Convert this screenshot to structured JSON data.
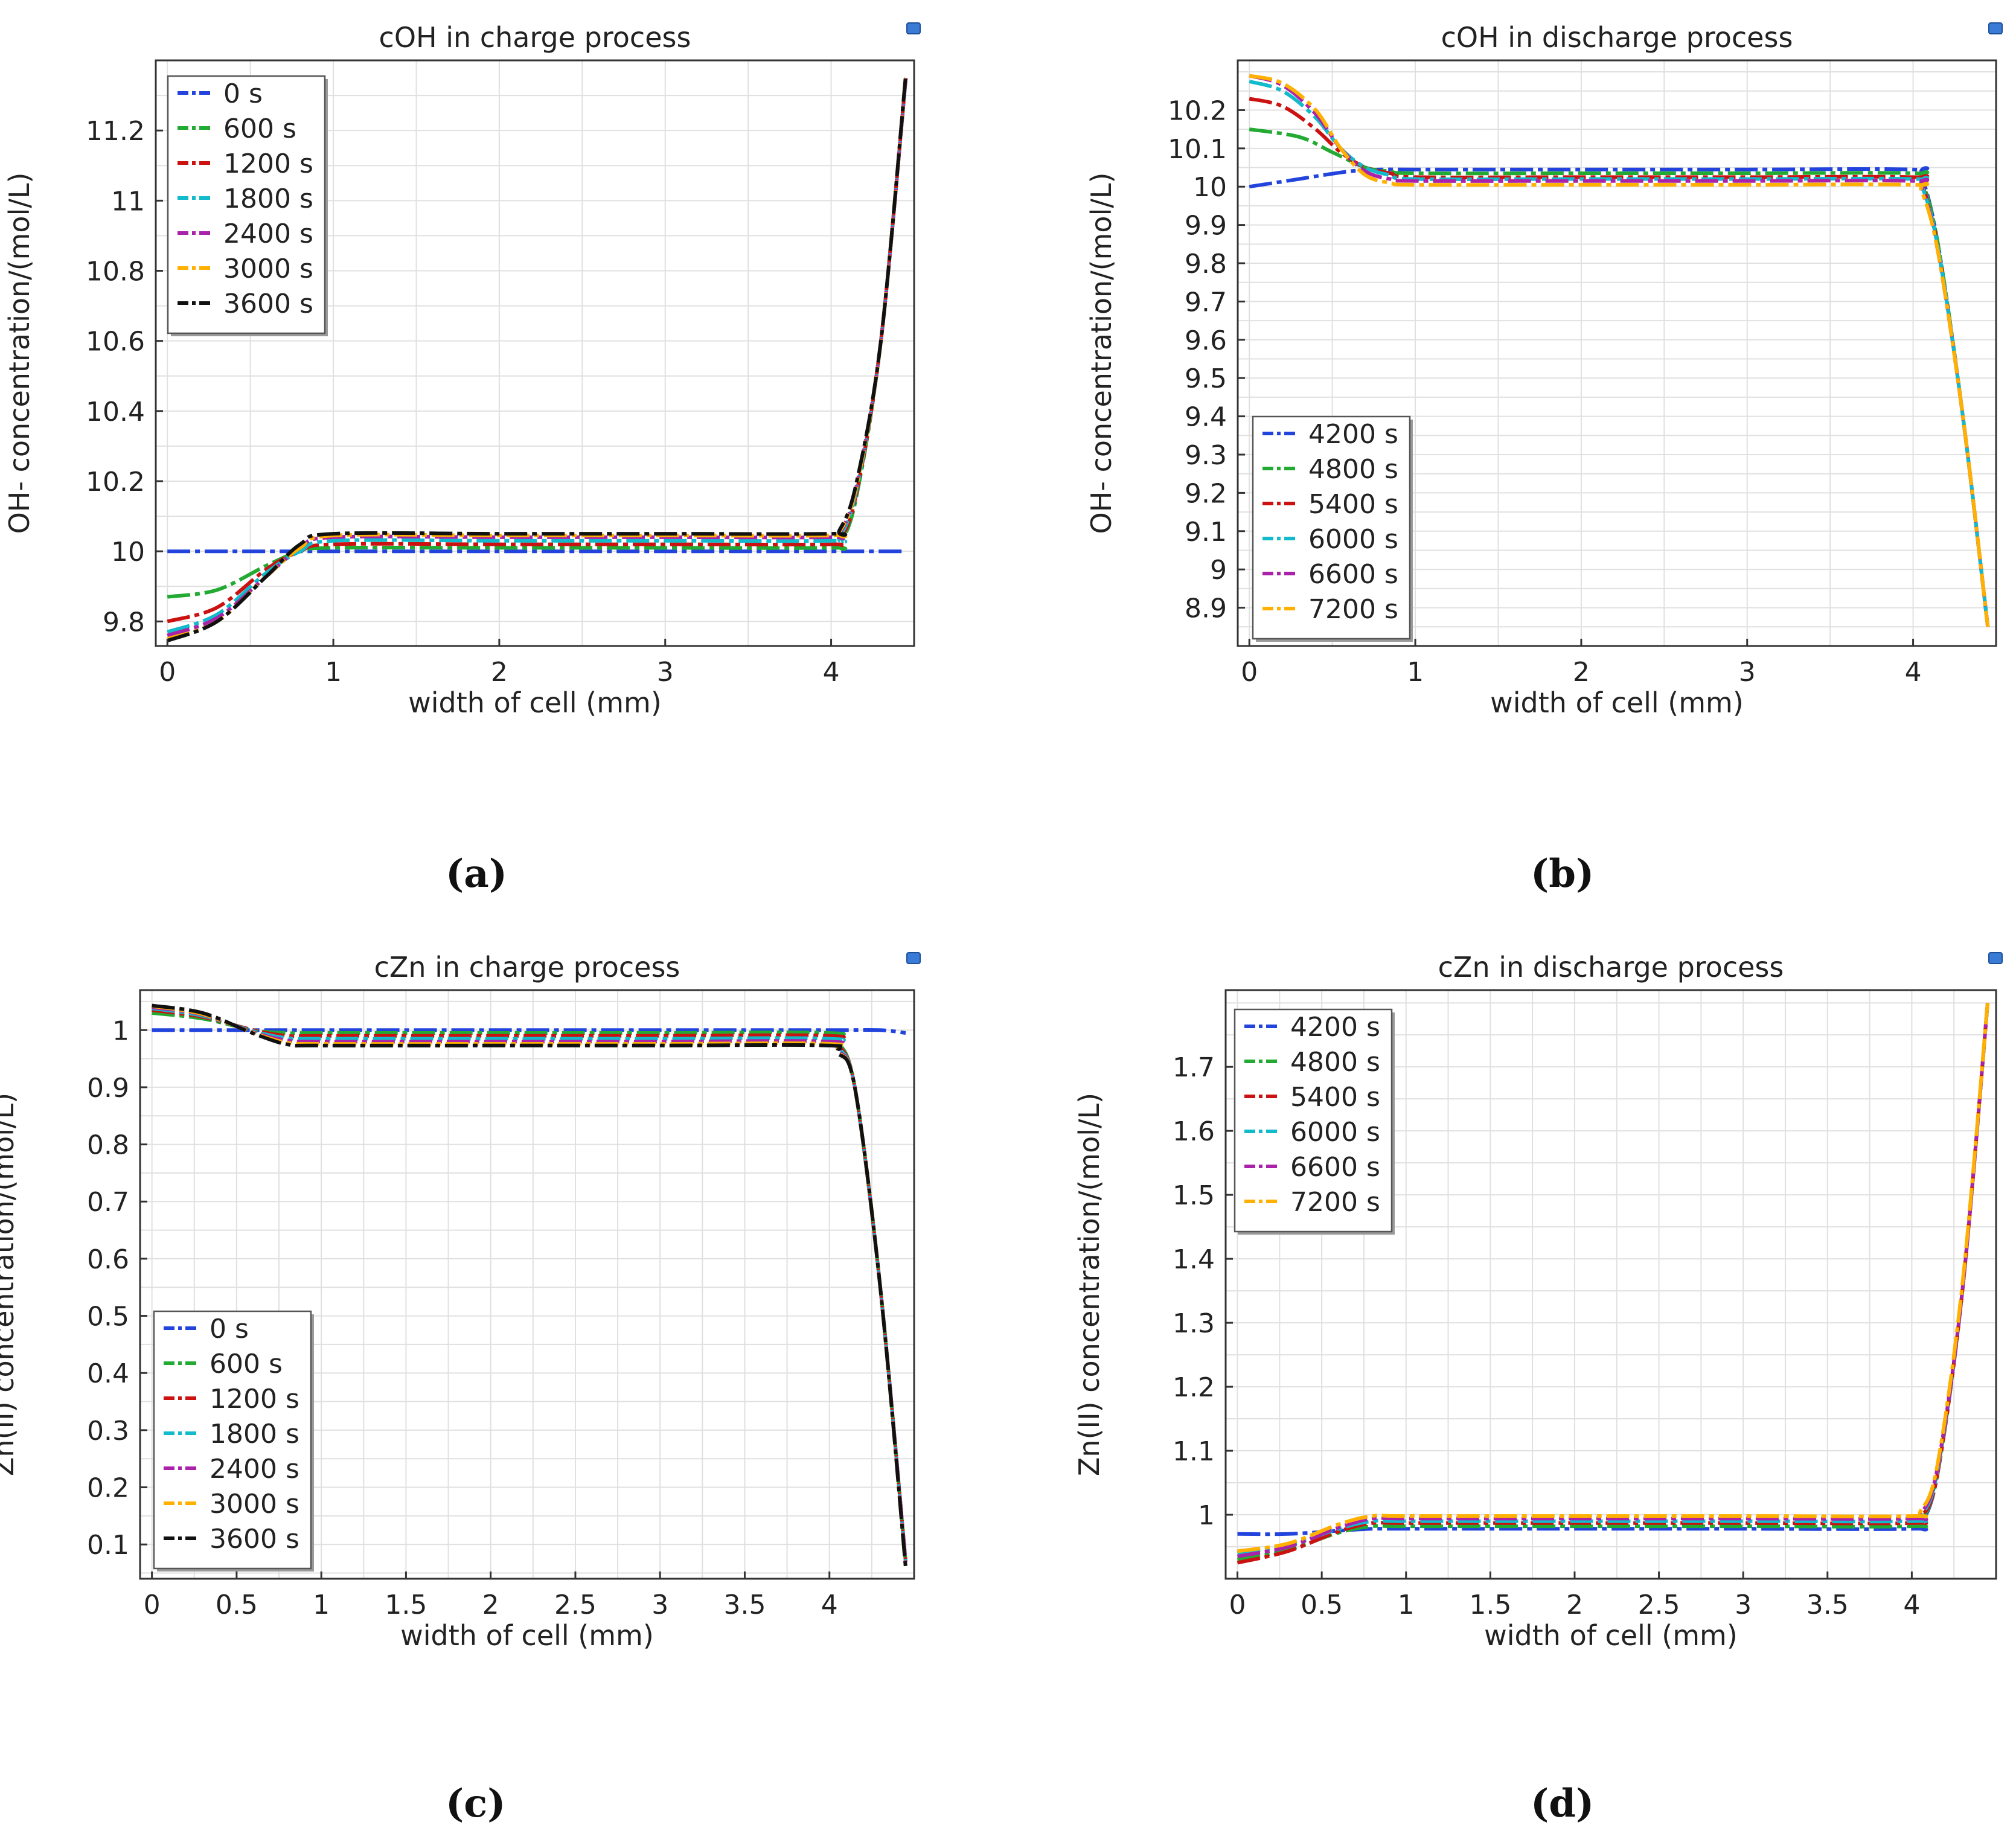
{
  "figure": {
    "panel_labels": [
      "(a)",
      "(b)",
      "(c)",
      "(d)"
    ]
  },
  "colors": {
    "s0": "#2244dd",
    "s1": "#22aa33",
    "s2": "#cc1111",
    "s3": "#11bbcc",
    "s4": "#aa22aa",
    "s5": "#ffb000",
    "s6": "#111111",
    "grid": "#e0e0e0",
    "axis": "#333333",
    "text": "#222222"
  },
  "chart_data": [
    {
      "id": "a",
      "type": "line",
      "title": "cOH in charge process",
      "xlabel": "width of cell (mm)",
      "ylabel": "OH- concentration/(mol/L)",
      "xlim": [
        -0.07,
        4.5
      ],
      "ylim": [
        9.73,
        11.4
      ],
      "xticks": [
        0,
        1,
        2,
        3,
        4
      ],
      "yticks": [
        9.8,
        10,
        10.2,
        10.4,
        10.6,
        10.8,
        11,
        11.2
      ],
      "legend_position": "top-left",
      "legend": [
        "0 s",
        "600 s",
        "1200 s",
        "1800 s",
        "2400 s",
        "3000 s",
        "3600 s"
      ],
      "series": [
        {
          "name": "0 s",
          "color_key": "s0",
          "x": [
            0,
            1,
            2,
            3,
            4,
            4.45
          ],
          "y": [
            10.0,
            10.0,
            10.0,
            10.0,
            10.0,
            10.0
          ]
        },
        {
          "name": "600 s",
          "color_key": "s1",
          "x": [
            0,
            0.3,
            0.6,
            0.8,
            1,
            2,
            3,
            4,
            4.05,
            4.15,
            4.3,
            4.45
          ],
          "y": [
            9.87,
            9.89,
            9.96,
            10.0,
            10.01,
            10.01,
            10.01,
            10.01,
            10.02,
            10.15,
            10.6,
            11.35
          ]
        },
        {
          "name": "1200 s",
          "color_key": "s2",
          "x": [
            0,
            0.3,
            0.6,
            0.8,
            1,
            2,
            3,
            4,
            4.05,
            4.15,
            4.3,
            4.45
          ],
          "y": [
            9.8,
            9.84,
            9.95,
            10.0,
            10.02,
            10.02,
            10.02,
            10.02,
            10.03,
            10.16,
            10.6,
            11.35
          ]
        },
        {
          "name": "1800 s",
          "color_key": "s3",
          "x": [
            0,
            0.3,
            0.6,
            0.8,
            1,
            2,
            3,
            4,
            4.05,
            4.15,
            4.3,
            4.45
          ],
          "y": [
            9.77,
            9.82,
            9.94,
            10.0,
            10.03,
            10.03,
            10.03,
            10.03,
            10.04,
            10.17,
            10.6,
            11.35
          ]
        },
        {
          "name": "2400 s",
          "color_key": "s4",
          "x": [
            0,
            0.3,
            0.6,
            0.8,
            1,
            2,
            3,
            4,
            4.05,
            4.15,
            4.3,
            4.45
          ],
          "y": [
            9.76,
            9.81,
            9.93,
            10.01,
            10.04,
            10.04,
            10.04,
            10.04,
            10.05,
            10.18,
            10.6,
            11.35
          ]
        },
        {
          "name": "3000 s",
          "color_key": "s5",
          "x": [
            0,
            0.3,
            0.6,
            0.8,
            1,
            2,
            3,
            4,
            4.05,
            4.15,
            4.3,
            4.45
          ],
          "y": [
            9.75,
            9.8,
            9.93,
            10.01,
            10.045,
            10.045,
            10.045,
            10.045,
            10.055,
            10.18,
            10.6,
            11.36
          ]
        },
        {
          "name": "3600 s",
          "color_key": "s6",
          "x": [
            0,
            0.3,
            0.6,
            0.8,
            1,
            2,
            3,
            4,
            4.05,
            4.15,
            4.3,
            4.45
          ],
          "y": [
            9.745,
            9.8,
            9.93,
            10.02,
            10.05,
            10.05,
            10.05,
            10.05,
            10.06,
            10.19,
            10.6,
            11.36
          ]
        }
      ]
    },
    {
      "id": "b",
      "type": "line",
      "title": "cOH in discharge process",
      "xlabel": "width of cell (mm)",
      "ylabel": "OH- concentration/(mol/L)",
      "xlim": [
        -0.07,
        4.5
      ],
      "ylim": [
        8.8,
        10.33
      ],
      "xticks": [
        0,
        1,
        2,
        3,
        4
      ],
      "yticks": [
        8.9,
        9,
        9.1,
        9.2,
        9.3,
        9.4,
        9.5,
        9.6,
        9.7,
        9.8,
        9.9,
        10,
        10.1,
        10.2
      ],
      "legend_position": "bottom-left",
      "legend": [
        "4200 s",
        "4800 s",
        "5400 s",
        "6000 s",
        "6600 s",
        "7200 s"
      ],
      "series": [
        {
          "name": "4200 s",
          "color_key": "s0",
          "x": [
            0,
            0.3,
            0.6,
            0.8,
            1,
            2,
            3,
            4,
            4.05,
            4.15,
            4.3,
            4.45
          ],
          "y": [
            10.0,
            10.02,
            10.04,
            10.045,
            10.045,
            10.045,
            10.045,
            10.045,
            10.03,
            9.85,
            9.4,
            8.85
          ]
        },
        {
          "name": "4800 s",
          "color_key": "s1",
          "x": [
            0,
            0.3,
            0.5,
            0.7,
            0.85,
            1,
            2,
            3,
            4,
            4.05,
            4.15,
            4.3,
            4.45
          ],
          "y": [
            10.15,
            10.13,
            10.09,
            10.05,
            10.04,
            10.035,
            10.035,
            10.035,
            10.035,
            10.02,
            9.85,
            9.4,
            8.85
          ]
        },
        {
          "name": "5400 s",
          "color_key": "s2",
          "x": [
            0,
            0.2,
            0.4,
            0.55,
            0.7,
            0.85,
            1,
            2,
            3,
            4,
            4.05,
            4.15,
            4.3,
            4.45
          ],
          "y": [
            10.23,
            10.21,
            10.15,
            10.09,
            10.05,
            10.035,
            10.025,
            10.025,
            10.025,
            10.025,
            10.01,
            9.84,
            9.4,
            8.85
          ]
        },
        {
          "name": "6000 s",
          "color_key": "s3",
          "x": [
            0,
            0.2,
            0.4,
            0.55,
            0.7,
            0.85,
            1,
            2,
            3,
            4,
            4.05,
            4.15,
            4.3,
            4.45
          ],
          "y": [
            10.275,
            10.25,
            10.18,
            10.1,
            10.05,
            10.03,
            10.02,
            10.02,
            10.02,
            10.02,
            10.005,
            9.84,
            9.4,
            8.85
          ]
        },
        {
          "name": "6600 s",
          "color_key": "s4",
          "x": [
            0,
            0.2,
            0.4,
            0.55,
            0.7,
            0.85,
            1,
            2,
            3,
            4,
            4.05,
            4.15,
            4.3,
            4.45
          ],
          "y": [
            10.29,
            10.265,
            10.19,
            10.1,
            10.04,
            10.02,
            10.015,
            10.015,
            10.015,
            10.015,
            10.0,
            9.83,
            9.4,
            8.85
          ]
        },
        {
          "name": "7200 s",
          "color_key": "s5",
          "x": [
            0,
            0.2,
            0.4,
            0.55,
            0.7,
            0.85,
            1,
            2,
            3,
            4,
            4.05,
            4.15,
            4.3,
            4.45
          ],
          "y": [
            10.29,
            10.27,
            10.2,
            10.1,
            10.03,
            10.01,
            10.005,
            10.005,
            10.005,
            10.005,
            9.99,
            9.83,
            9.4,
            8.85
          ]
        }
      ]
    },
    {
      "id": "c",
      "type": "line",
      "title": "cZn in charge process",
      "xlabel": "width of cell (mm)",
      "ylabel": "Zn(II) concentration/(mol/L)",
      "xlim": [
        -0.07,
        4.5
      ],
      "ylim": [
        0.04,
        1.07
      ],
      "xticks": [
        0,
        0.5,
        1,
        1.5,
        2,
        2.5,
        3,
        3.5,
        4
      ],
      "yticks": [
        0.1,
        0.2,
        0.3,
        0.4,
        0.5,
        0.6,
        0.7,
        0.8,
        0.9,
        1
      ],
      "legend_position": "bottom-left",
      "legend": [
        "0 s",
        "600 s",
        "1200 s",
        "1800 s",
        "2400 s",
        "3000 s",
        "3600 s"
      ],
      "series": [
        {
          "name": "0 s",
          "color_key": "s0",
          "x": [
            0,
            1,
            2,
            3,
            4,
            4.3,
            4.45
          ],
          "y": [
            1.0,
            1.0,
            1.0,
            1.0,
            1.0,
            1.0,
            0.995
          ]
        },
        {
          "name": "600 s",
          "color_key": "s1",
          "x": [
            0,
            0.3,
            0.6,
            0.8,
            1,
            2,
            3,
            4,
            4.05,
            4.15,
            4.3,
            4.45
          ],
          "y": [
            1.03,
            1.02,
            1.0,
            0.995,
            0.995,
            0.995,
            0.995,
            0.995,
            0.98,
            0.9,
            0.55,
            0.07
          ]
        },
        {
          "name": "1200 s",
          "color_key": "s2",
          "x": [
            0,
            0.3,
            0.6,
            0.8,
            1,
            2,
            3,
            4,
            4.05,
            4.15,
            4.3,
            4.45
          ],
          "y": [
            1.035,
            1.023,
            1.0,
            0.99,
            0.99,
            0.99,
            0.99,
            0.99,
            0.975,
            0.9,
            0.55,
            0.07
          ]
        },
        {
          "name": "1800 s",
          "color_key": "s3",
          "x": [
            0,
            0.3,
            0.6,
            0.8,
            1,
            2,
            3,
            4,
            4.05,
            4.15,
            4.3,
            4.45
          ],
          "y": [
            1.038,
            1.025,
            0.998,
            0.986,
            0.985,
            0.985,
            0.985,
            0.985,
            0.97,
            0.9,
            0.55,
            0.07
          ]
        },
        {
          "name": "2400 s",
          "color_key": "s4",
          "x": [
            0,
            0.3,
            0.6,
            0.8,
            1,
            2,
            3,
            4,
            4.05,
            4.15,
            4.3,
            4.45
          ],
          "y": [
            1.04,
            1.027,
            0.996,
            0.982,
            0.98,
            0.98,
            0.98,
            0.98,
            0.965,
            0.9,
            0.55,
            0.07
          ]
        },
        {
          "name": "3000 s",
          "color_key": "s5",
          "x": [
            0,
            0.3,
            0.6,
            0.8,
            1,
            2,
            3,
            4,
            4.05,
            4.15,
            4.3,
            4.45
          ],
          "y": [
            1.042,
            1.028,
            0.995,
            0.978,
            0.976,
            0.976,
            0.976,
            0.976,
            0.962,
            0.9,
            0.55,
            0.06
          ]
        },
        {
          "name": "3600 s",
          "color_key": "s6",
          "x": [
            0,
            0.3,
            0.6,
            0.8,
            1,
            2,
            3,
            4,
            4.05,
            4.15,
            4.3,
            4.45
          ],
          "y": [
            1.043,
            1.03,
            0.994,
            0.975,
            0.973,
            0.973,
            0.973,
            0.973,
            0.96,
            0.9,
            0.55,
            0.06
          ]
        }
      ]
    },
    {
      "id": "d",
      "type": "line",
      "title": "cZn in discharge process",
      "xlabel": "width of cell (mm)",
      "ylabel": "Zn(II) concentration/(mol/L)",
      "xlim": [
        -0.07,
        4.5
      ],
      "ylim": [
        0.9,
        1.82
      ],
      "xticks": [
        0,
        0.5,
        1,
        1.5,
        2,
        2.5,
        3,
        3.5,
        4
      ],
      "yticks": [
        1,
        1.1,
        1.2,
        1.3,
        1.4,
        1.5,
        1.6,
        1.7
      ],
      "legend_position": "top-left",
      "legend": [
        "4200 s",
        "4800 s",
        "5400 s",
        "6000 s",
        "6600 s",
        "7200 s"
      ],
      "series": [
        {
          "name": "4200 s",
          "color_key": "s0",
          "x": [
            0,
            0.3,
            0.6,
            0.8,
            1,
            2,
            3,
            4,
            4.05,
            4.15,
            4.3,
            4.45
          ],
          "y": [
            0.97,
            0.97,
            0.975,
            0.978,
            0.978,
            0.978,
            0.978,
            0.978,
            0.985,
            1.06,
            1.35,
            1.8
          ]
        },
        {
          "name": "4800 s",
          "color_key": "s1",
          "x": [
            0,
            0.3,
            0.6,
            0.8,
            1,
            2,
            3,
            4,
            4.05,
            4.15,
            4.3,
            4.45
          ],
          "y": [
            0.93,
            0.945,
            0.972,
            0.982,
            0.982,
            0.982,
            0.982,
            0.982,
            0.99,
            1.06,
            1.35,
            1.8
          ]
        },
        {
          "name": "5400 s",
          "color_key": "s2",
          "x": [
            0,
            0.3,
            0.6,
            0.8,
            1,
            2,
            3,
            4,
            4.05,
            4.15,
            4.3,
            4.45
          ],
          "y": [
            0.925,
            0.943,
            0.974,
            0.987,
            0.987,
            0.987,
            0.987,
            0.987,
            0.995,
            1.06,
            1.35,
            1.8
          ]
        },
        {
          "name": "6000 s",
          "color_key": "s3",
          "x": [
            0,
            0.3,
            0.6,
            0.8,
            1,
            2,
            3,
            4,
            4.05,
            4.15,
            4.3,
            4.45
          ],
          "y": [
            0.94,
            0.952,
            0.978,
            0.99,
            0.99,
            0.99,
            0.99,
            0.99,
            0.998,
            1.065,
            1.35,
            1.8
          ]
        },
        {
          "name": "6600 s",
          "color_key": "s4",
          "x": [
            0,
            0.3,
            0.6,
            0.8,
            1,
            2,
            3,
            4,
            4.05,
            4.15,
            4.3,
            4.45
          ],
          "y": [
            0.935,
            0.95,
            0.98,
            0.994,
            0.994,
            0.994,
            0.994,
            0.994,
            1.0,
            1.07,
            1.35,
            1.8
          ]
        },
        {
          "name": "7200 s",
          "color_key": "s5",
          "x": [
            0,
            0.3,
            0.6,
            0.8,
            1,
            2,
            3,
            4,
            4.05,
            4.15,
            4.3,
            4.45
          ],
          "y": [
            0.943,
            0.955,
            0.985,
            0.998,
            0.998,
            0.998,
            0.998,
            0.998,
            1.005,
            1.075,
            1.36,
            1.8
          ]
        }
      ]
    }
  ]
}
